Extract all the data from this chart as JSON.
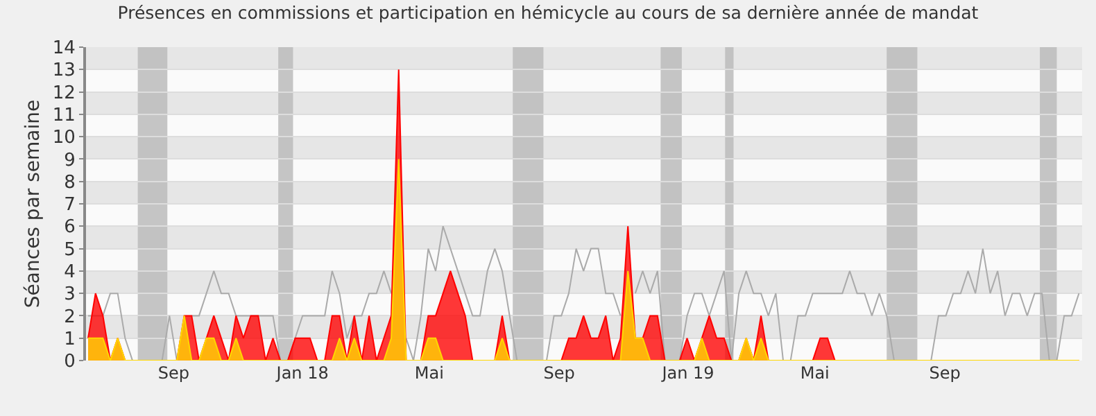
{
  "chart_data": {
    "type": "area",
    "title": "Présences en commissions et participation en hémicycle au cours de sa dernière année de mandat",
    "ylabel": "Séances par semaine",
    "x": [
      "2017-06-26",
      "2017-07-03",
      "2017-07-10",
      "2017-07-17",
      "2017-07-24",
      "2017-07-31",
      "2017-08-07",
      "2017-08-14",
      "2017-08-21",
      "2017-08-28",
      "2017-09-04",
      "2017-09-11",
      "2017-09-18",
      "2017-09-25",
      "2017-10-02",
      "2017-10-09",
      "2017-10-16",
      "2017-10-23",
      "2017-10-30",
      "2017-11-06",
      "2017-11-13",
      "2017-11-20",
      "2017-11-27",
      "2017-12-04",
      "2017-12-11",
      "2017-12-18",
      "2017-12-25",
      "2018-01-01",
      "2018-01-08",
      "2018-01-15",
      "2018-01-22",
      "2018-01-29",
      "2018-02-05",
      "2018-02-12",
      "2018-02-19",
      "2018-02-26",
      "2018-03-05",
      "2018-03-12",
      "2018-03-19",
      "2018-03-26",
      "2018-04-02",
      "2018-04-09",
      "2018-04-16",
      "2018-04-23",
      "2018-04-30",
      "2018-05-07",
      "2018-05-14",
      "2018-05-21",
      "2018-05-28",
      "2018-06-04",
      "2018-06-11",
      "2018-06-18",
      "2018-06-25",
      "2018-07-02",
      "2018-07-09",
      "2018-07-16",
      "2018-07-23",
      "2018-07-30",
      "2018-08-06",
      "2018-08-13",
      "2018-08-20",
      "2018-08-27",
      "2018-09-03",
      "2018-09-10",
      "2018-09-17",
      "2018-09-24",
      "2018-10-01",
      "2018-10-08",
      "2018-10-15",
      "2018-10-22",
      "2018-10-29",
      "2018-11-05",
      "2018-11-12",
      "2018-11-19",
      "2018-11-26",
      "2018-12-03",
      "2018-12-10",
      "2018-12-17",
      "2018-12-24",
      "2018-12-31",
      "2019-01-07",
      "2019-01-14",
      "2019-01-21",
      "2019-01-28",
      "2019-02-04",
      "2019-02-11",
      "2019-02-18",
      "2019-02-25",
      "2019-03-04",
      "2019-03-11",
      "2019-03-18",
      "2019-03-25",
      "2019-04-01",
      "2019-04-08",
      "2019-04-15",
      "2019-04-22",
      "2019-04-29",
      "2019-05-06",
      "2019-05-13",
      "2019-05-20",
      "2019-05-27",
      "2019-06-03",
      "2019-06-10",
      "2019-06-17",
      "2019-06-24",
      "2019-07-01",
      "2019-07-08",
      "2019-07-15",
      "2019-07-22",
      "2019-07-29",
      "2019-08-05",
      "2019-08-12",
      "2019-08-19",
      "2019-08-26",
      "2019-09-02",
      "2019-09-09",
      "2019-09-16",
      "2019-09-23",
      "2019-09-30",
      "2019-10-07",
      "2019-10-14",
      "2019-10-21",
      "2019-10-28",
      "2019-11-04",
      "2019-11-11",
      "2019-11-18",
      "2019-11-25",
      "2019-12-02",
      "2019-12-09",
      "2019-12-16",
      "2019-12-23",
      "2019-12-30",
      "2020-01-06",
      "2020-01-13",
      "2020-01-20"
    ],
    "series": [
      {
        "type": "line",
        "color": "#aaaaaa",
        "values": [
          2,
          2,
          2,
          3,
          3,
          1,
          0,
          0,
          0,
          0,
          0,
          2,
          0,
          null,
          2,
          2,
          3,
          4,
          3,
          3,
          2,
          2,
          2,
          2,
          2,
          2,
          0,
          0,
          1,
          2,
          2,
          2,
          2,
          4,
          3,
          1,
          2,
          2,
          3,
          3,
          4,
          3,
          null,
          1,
          0,
          2,
          5,
          4,
          6,
          5,
          4,
          3,
          2,
          2,
          4,
          5,
          4,
          2,
          0,
          0,
          0,
          0,
          0,
          2,
          2,
          3,
          5,
          4,
          5,
          5,
          3,
          3,
          2,
          null,
          3,
          4,
          3,
          4,
          0,
          0,
          0,
          2,
          3,
          3,
          2,
          3,
          4,
          0,
          3,
          4,
          3,
          3,
          2,
          3,
          0,
          0,
          2,
          2,
          3,
          3,
          3,
          3,
          3,
          4,
          3,
          3,
          2,
          3,
          2,
          0,
          0,
          0,
          0,
          0,
          0,
          2,
          2,
          3,
          3,
          4,
          3,
          5,
          3,
          4,
          2,
          3,
          3,
          2,
          3,
          3,
          0,
          0,
          2,
          2,
          3
        ]
      },
      {
        "color": "#ff0000",
        "values": [
          1,
          3,
          2,
          0,
          1,
          0,
          0,
          0,
          0,
          0,
          0,
          0,
          0,
          2,
          2,
          0,
          1,
          2,
          1,
          0,
          2,
          1,
          2,
          2,
          0,
          1,
          0,
          0,
          1,
          1,
          1,
          0,
          0,
          2,
          2,
          0,
          2,
          0,
          2,
          0,
          1,
          2,
          13,
          0,
          0,
          0,
          2,
          2,
          3,
          4,
          3,
          2,
          0,
          0,
          0,
          0,
          2,
          0,
          0,
          0,
          0,
          0,
          0,
          0,
          0,
          1,
          1,
          2,
          1,
          1,
          2,
          0,
          1,
          6,
          1,
          1,
          2,
          2,
          0,
          0,
          0,
          1,
          0,
          1,
          2,
          1,
          1,
          0,
          0,
          1,
          0,
          2,
          0,
          0,
          0,
          0,
          0,
          0,
          0,
          1,
          1,
          0,
          0,
          0,
          0,
          0,
          0,
          0,
          0,
          0,
          0,
          0,
          0,
          0,
          0,
          0,
          0,
          0,
          0,
          0,
          0,
          0,
          0,
          0,
          0,
          0,
          0,
          0,
          0,
          0,
          0,
          0,
          0,
          0,
          0
        ]
      },
      {
        "color": "#ffd700",
        "values": [
          1,
          1,
          1,
          0,
          1,
          0,
          0,
          0,
          0,
          0,
          0,
          0,
          0,
          2,
          0,
          0,
          1,
          1,
          0,
          0,
          1,
          0,
          0,
          0,
          0,
          0,
          0,
          0,
          0,
          0,
          0,
          0,
          0,
          0,
          1,
          0,
          1,
          0,
          0,
          0,
          0,
          1,
          9,
          0,
          0,
          0,
          1,
          1,
          0,
          0,
          0,
          0,
          0,
          0,
          0,
          0,
          1,
          0,
          0,
          0,
          0,
          0,
          0,
          0,
          0,
          0,
          0,
          0,
          0,
          0,
          0,
          0,
          0,
          4,
          1,
          1,
          0,
          0,
          0,
          0,
          0,
          0,
          0,
          1,
          0,
          0,
          0,
          0,
          0,
          1,
          0,
          1,
          0,
          0,
          0,
          0,
          0,
          0,
          0,
          0,
          0,
          0,
          0,
          0,
          0,
          0,
          0,
          0,
          0,
          0,
          0,
          0,
          0,
          0,
          0,
          0,
          0,
          0,
          0,
          0,
          0,
          0,
          0,
          0,
          0,
          0,
          0,
          0,
          0,
          0,
          0,
          0,
          0,
          0,
          0
        ]
      }
    ],
    "bands": [
      {
        "axis": "x",
        "from": "2017-08-12",
        "to": "2017-09-09",
        "color": "#bbbbbb"
      },
      {
        "axis": "x",
        "from": "2017-12-23",
        "to": "2018-01-06",
        "color": "#bbbbbb"
      },
      {
        "axis": "x",
        "from": "2018-08-02",
        "to": "2018-08-31",
        "color": "#bbbbbb"
      },
      {
        "axis": "x",
        "from": "2018-12-20",
        "to": "2019-01-09",
        "color": "#bbbbbb"
      },
      {
        "axis": "x",
        "from": "2019-02-19",
        "to": "2019-02-27",
        "color": "#bbbbbb"
      },
      {
        "axis": "x",
        "from": "2019-07-22",
        "to": "2019-08-20",
        "color": "#bbbbbb"
      },
      {
        "axis": "x",
        "from": "2019-12-14",
        "to": "2019-12-30",
        "color": "#bbbbbb"
      }
    ],
    "xlim": [
      "2017-06-24",
      "2020-01-23"
    ],
    "xticks": [
      {
        "value": "2017-09-15",
        "label": "Sep"
      },
      {
        "value": "2018-01-15",
        "label": "Jan 18"
      },
      {
        "value": "2018-05-15",
        "label": "Mai"
      },
      {
        "value": "2018-09-15",
        "label": "Sep"
      },
      {
        "value": "2019-01-15",
        "label": "Jan 19"
      },
      {
        "value": "2019-05-15",
        "label": "Mai"
      },
      {
        "value": "2019-09-15",
        "label": "Sep"
      }
    ],
    "ylim": [
      0,
      14
    ],
    "yticks": [
      0,
      1,
      2,
      3,
      4,
      5,
      6,
      7,
      8,
      9,
      10,
      11,
      12,
      13,
      14
    ],
    "grid": true
  }
}
